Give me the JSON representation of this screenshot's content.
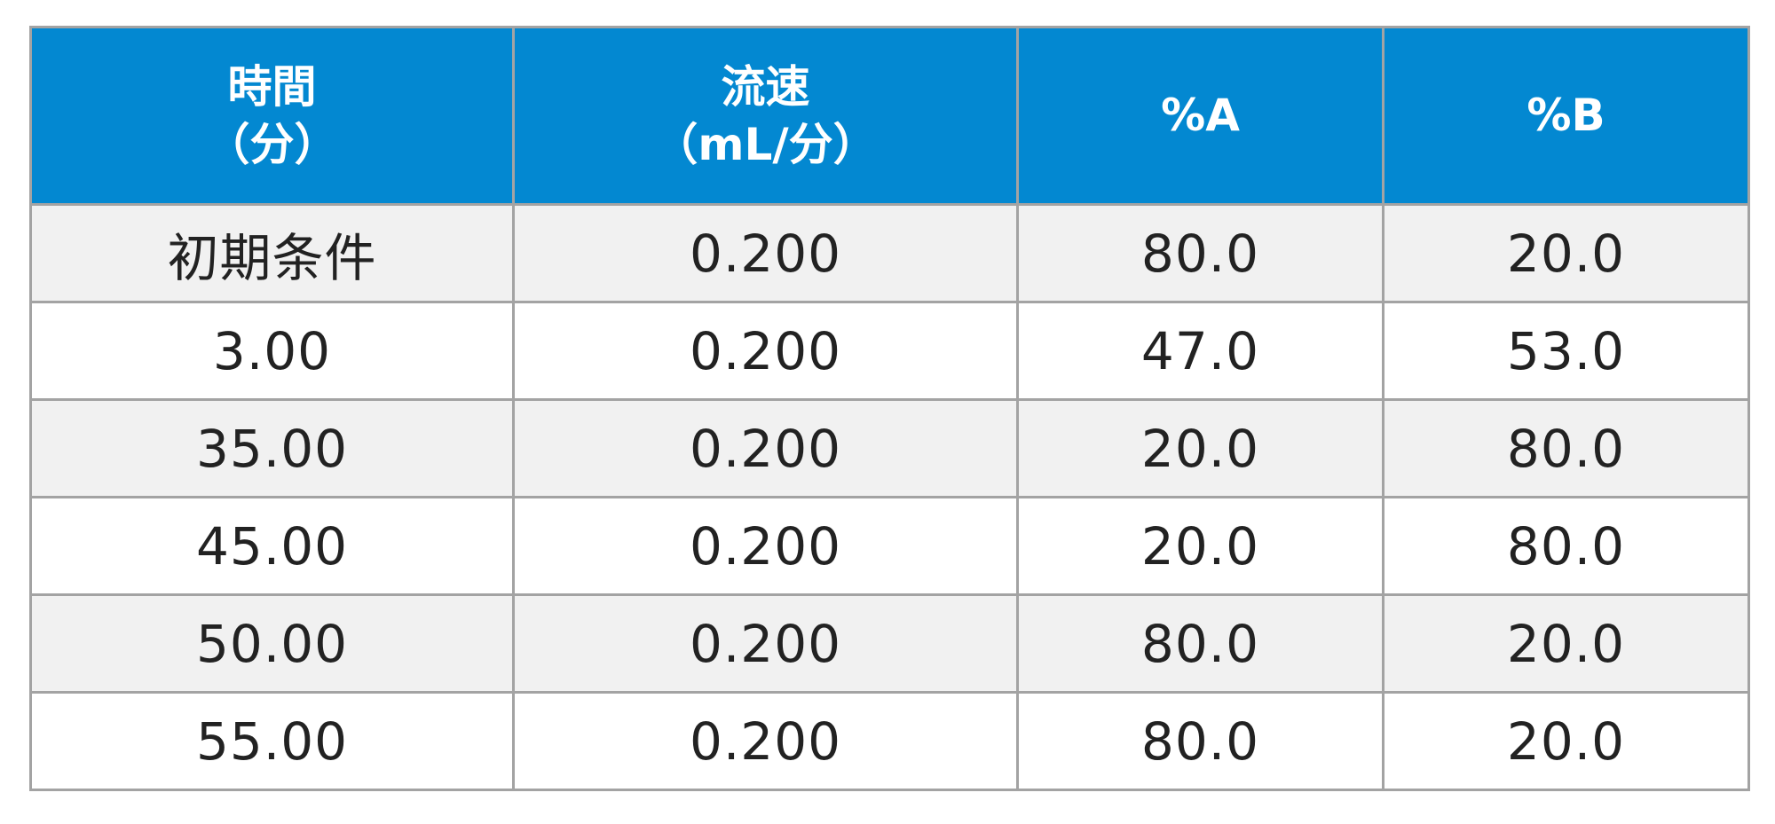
{
  "table": {
    "headers": [
      {
        "line1": "時間",
        "line2": "（分）"
      },
      {
        "line1": "流速",
        "line2": "（mL/分）"
      },
      {
        "line1": "%A",
        "line2": ""
      },
      {
        "line1": "%B",
        "line2": ""
      }
    ],
    "rows": [
      [
        "初期条件",
        "0.200",
        "80.0",
        "20.0"
      ],
      [
        "3.00",
        "0.200",
        "47.0",
        "53.0"
      ],
      [
        "35.00",
        "0.200",
        "20.0",
        "80.0"
      ],
      [
        "45.00",
        "0.200",
        "20.0",
        "80.0"
      ],
      [
        "50.00",
        "0.200",
        "80.0",
        "20.0"
      ],
      [
        "55.00",
        "0.200",
        "80.0",
        "20.0"
      ]
    ]
  },
  "colors": {
    "header_bg": "#0388d1",
    "header_text": "#ffffff",
    "row_alt_bg": "#f1f1f1",
    "grid": "#a3a3a3"
  }
}
